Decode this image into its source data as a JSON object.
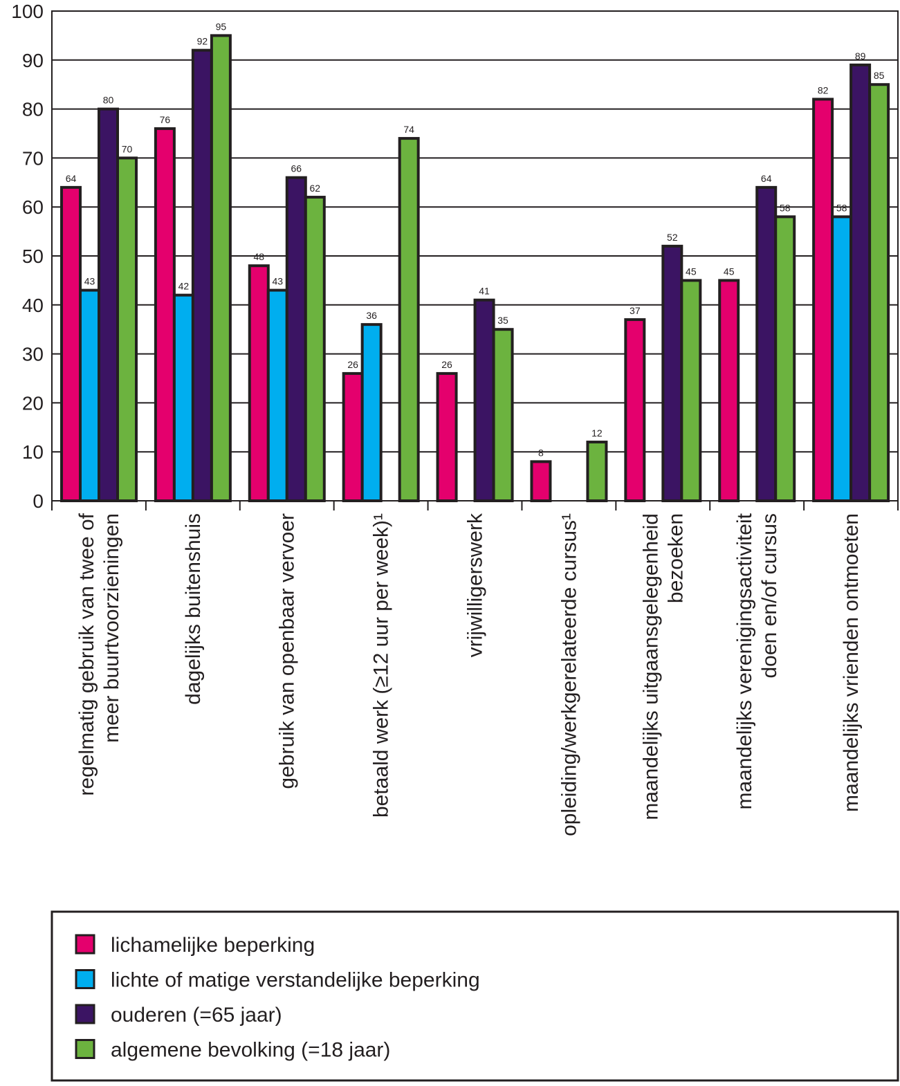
{
  "chart_data": {
    "type": "bar",
    "categories": [
      "regelmatig gebruik van twee of\nmeer buurtvoorzieningen",
      "dagelijks buitenshuis",
      "gebruik van openbaar vervoer",
      "betaald werk (≥12 uur per week)¹",
      "vrijwilligerswerk",
      "opleiding/werkgerelateerde cursus¹",
      "maandelijks uitgaansgelegenheid\nbezoeken",
      "maandelijks verenigingsactiviteit\ndoen en/of cursus",
      "maandelijks vrienden ontmoeten"
    ],
    "series": [
      {
        "name": "lichamelijke beperking",
        "color": "#e4006d",
        "values": [
          64,
          76,
          48,
          26,
          26,
          8,
          37,
          45,
          82
        ]
      },
      {
        "name": "lichte of matige verstandelijke beperking",
        "color": "#00aeef",
        "values": [
          43,
          42,
          43,
          36,
          null,
          null,
          null,
          null,
          58
        ]
      },
      {
        "name": "ouderen (=65 jaar)",
        "color": "#3b1463",
        "values": [
          80,
          92,
          66,
          null,
          41,
          null,
          52,
          64,
          89
        ]
      },
      {
        "name": "algemene bevolking (=18 jaar)",
        "color": "#6cb33f",
        "values": [
          70,
          95,
          62,
          74,
          35,
          12,
          45,
          58,
          85
        ]
      }
    ],
    "ylim": [
      0,
      100
    ],
    "yticks": [
      0,
      10,
      20,
      30,
      40,
      50,
      60,
      70,
      80,
      90,
      100
    ],
    "grid": true
  }
}
